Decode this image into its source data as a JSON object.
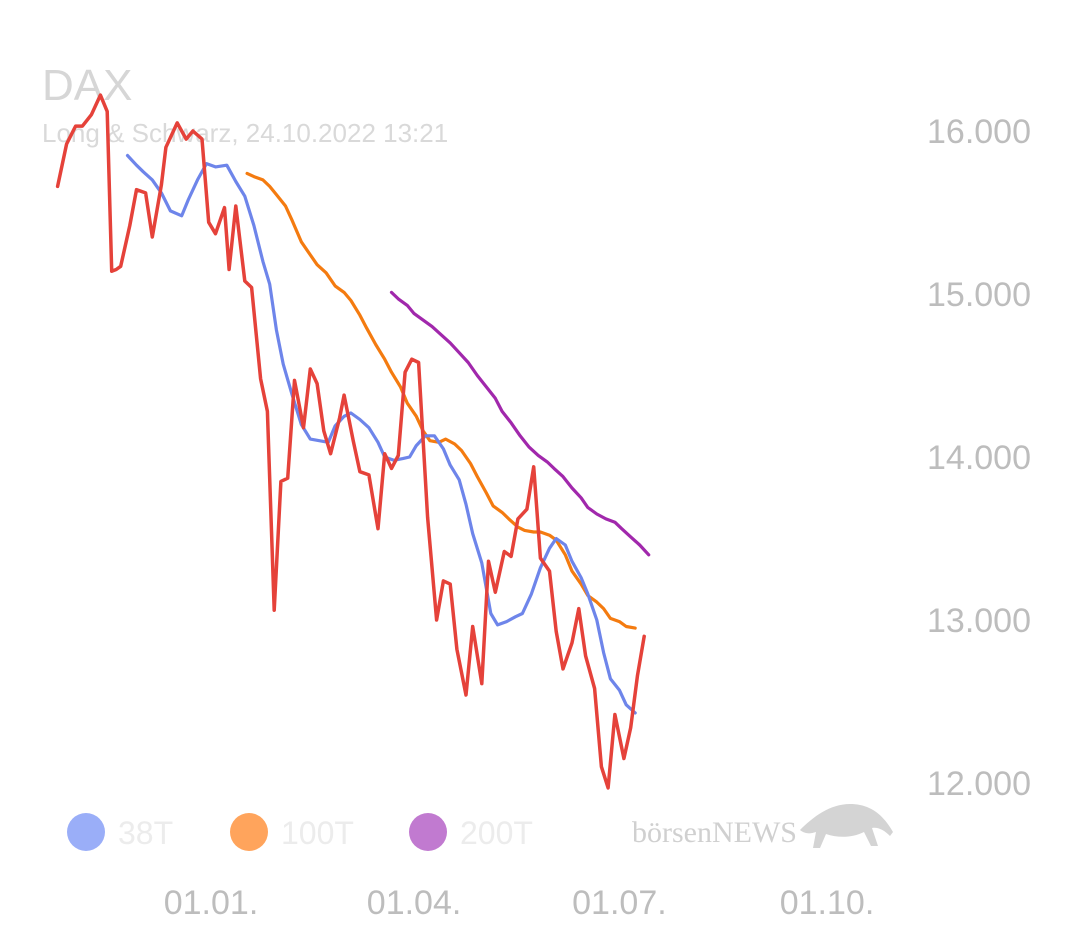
{
  "chart_data": {
    "type": "line",
    "title": "DAX",
    "subtitle": "Long & Schwarz, 24.10.2022 13:21",
    "brand": "börsenNEWS",
    "x_ticks": [
      {
        "label": "01.01.",
        "x": 0
      },
      {
        "label": "01.04.",
        "x": 90
      },
      {
        "label": "01.07.",
        "x": 181
      },
      {
        "label": "01.10.",
        "x": 273
      }
    ],
    "y_ticks": [
      {
        "label": "16.000",
        "value": 16000
      },
      {
        "label": "15.000",
        "value": 15000
      },
      {
        "label": "14.000",
        "value": 14000
      },
      {
        "label": "13.000",
        "value": 13000
      },
      {
        "label": "12.000",
        "value": 12000
      }
    ],
    "ylim": [
      12000,
      16000
    ],
    "x_unit": "days relative to 01.01.2022",
    "legend": [
      {
        "label": "38T",
        "color": "#9aaef8"
      },
      {
        "label": "100T",
        "color": "#ffa45c"
      },
      {
        "label": "200T",
        "color": "#c17ad0"
      }
    ],
    "series": [
      {
        "name": "DAX",
        "color": "#e5423a",
        "points": [
          [
            -68,
            15660
          ],
          [
            -64,
            15920
          ],
          [
            -60,
            16030
          ],
          [
            -57,
            16030
          ],
          [
            -53,
            16100
          ],
          [
            -49,
            16220
          ],
          [
            -46,
            16120
          ],
          [
            -44,
            15140
          ],
          [
            -42,
            15150
          ],
          [
            -40,
            15170
          ],
          [
            -36,
            15420
          ],
          [
            -33,
            15640
          ],
          [
            -29,
            15620
          ],
          [
            -26,
            15350
          ],
          [
            -22,
            15670
          ],
          [
            -20,
            15900
          ],
          [
            -15,
            16050
          ],
          [
            -11,
            15950
          ],
          [
            -8,
            16000
          ],
          [
            -4,
            15950
          ],
          [
            -1,
            15440
          ],
          [
            2,
            15370
          ],
          [
            6,
            15530
          ],
          [
            8,
            15150
          ],
          [
            11,
            15540
          ],
          [
            15,
            15080
          ],
          [
            18,
            15040
          ],
          [
            22,
            14480
          ],
          [
            25,
            14280
          ],
          [
            28,
            13060
          ],
          [
            31,
            13850
          ],
          [
            34,
            13870
          ],
          [
            37,
            14470
          ],
          [
            41,
            14180
          ],
          [
            44,
            14540
          ],
          [
            47,
            14450
          ],
          [
            50,
            14160
          ],
          [
            53,
            14020
          ],
          [
            57,
            14240
          ],
          [
            59,
            14380
          ],
          [
            63,
            14100
          ],
          [
            66,
            13910
          ],
          [
            70,
            13890
          ],
          [
            74,
            13560
          ],
          [
            77,
            14020
          ],
          [
            80,
            13930
          ],
          [
            83,
            14010
          ],
          [
            86,
            14520
          ],
          [
            89,
            14600
          ],
          [
            92,
            14580
          ],
          [
            96,
            13630
          ],
          [
            100,
            13000
          ],
          [
            103,
            13240
          ],
          [
            106,
            13220
          ],
          [
            109,
            12820
          ],
          [
            113,
            12540
          ],
          [
            116,
            12960
          ],
          [
            120,
            12610
          ],
          [
            123,
            13360
          ],
          [
            126,
            13170
          ],
          [
            130,
            13420
          ],
          [
            133,
            13390
          ],
          [
            136,
            13620
          ],
          [
            140,
            13680
          ],
          [
            143,
            13940
          ],
          [
            146,
            13380
          ],
          [
            150,
            13300
          ],
          [
            153,
            12930
          ],
          [
            156,
            12700
          ],
          [
            160,
            12860
          ],
          [
            163,
            13070
          ],
          [
            166,
            12780
          ],
          [
            170,
            12580
          ],
          [
            173,
            12100
          ],
          [
            176,
            11970
          ],
          [
            179,
            12420
          ],
          [
            183,
            12150
          ],
          [
            186,
            12340
          ],
          [
            189,
            12660
          ],
          [
            192,
            12900
          ]
        ]
      },
      {
        "name": "38T",
        "color": "#6e85ea",
        "points": [
          [
            -37,
            15850
          ],
          [
            -33,
            15790
          ],
          [
            -30,
            15750
          ],
          [
            -26,
            15700
          ],
          [
            -22,
            15620
          ],
          [
            -18,
            15510
          ],
          [
            -13,
            15480
          ],
          [
            -10,
            15580
          ],
          [
            -6,
            15700
          ],
          [
            -2,
            15800
          ],
          [
            2,
            15780
          ],
          [
            7,
            15790
          ],
          [
            11,
            15690
          ],
          [
            15,
            15600
          ],
          [
            19,
            15420
          ],
          [
            23,
            15200
          ],
          [
            26,
            15060
          ],
          [
            29,
            14780
          ],
          [
            32,
            14570
          ],
          [
            36,
            14380
          ],
          [
            40,
            14200
          ],
          [
            44,
            14110
          ],
          [
            48,
            14100
          ],
          [
            52,
            14090
          ],
          [
            55,
            14190
          ],
          [
            59,
            14250
          ],
          [
            62,
            14270
          ],
          [
            66,
            14230
          ],
          [
            70,
            14180
          ],
          [
            74,
            14090
          ],
          [
            77,
            14000
          ],
          [
            81,
            13980
          ],
          [
            85,
            13990
          ],
          [
            88,
            14000
          ],
          [
            91,
            14070
          ],
          [
            95,
            14130
          ],
          [
            99,
            14130
          ],
          [
            103,
            14050
          ],
          [
            106,
            13950
          ],
          [
            110,
            13860
          ],
          [
            113,
            13710
          ],
          [
            116,
            13530
          ],
          [
            120,
            13350
          ],
          [
            124,
            13040
          ],
          [
            127,
            12970
          ],
          [
            131,
            12990
          ],
          [
            135,
            13020
          ],
          [
            138,
            13040
          ],
          [
            142,
            13160
          ],
          [
            146,
            13320
          ],
          [
            150,
            13440
          ],
          [
            153,
            13500
          ],
          [
            157,
            13460
          ],
          [
            160,
            13360
          ],
          [
            164,
            13260
          ],
          [
            167,
            13160
          ],
          [
            171,
            13000
          ],
          [
            174,
            12800
          ],
          [
            177,
            12640
          ],
          [
            181,
            12570
          ],
          [
            184,
            12480
          ],
          [
            188,
            12430
          ]
        ]
      },
      {
        "name": "100T",
        "color": "#f47b10",
        "points": [
          [
            16,
            15740
          ],
          [
            19,
            15720
          ],
          [
            23,
            15700
          ],
          [
            26,
            15660
          ],
          [
            29,
            15610
          ],
          [
            33,
            15540
          ],
          [
            36,
            15450
          ],
          [
            40,
            15320
          ],
          [
            44,
            15240
          ],
          [
            47,
            15180
          ],
          [
            51,
            15130
          ],
          [
            55,
            15050
          ],
          [
            59,
            15010
          ],
          [
            62,
            14960
          ],
          [
            66,
            14870
          ],
          [
            69,
            14790
          ],
          [
            73,
            14690
          ],
          [
            77,
            14600
          ],
          [
            80,
            14520
          ],
          [
            84,
            14430
          ],
          [
            87,
            14330
          ],
          [
            91,
            14250
          ],
          [
            94,
            14160
          ],
          [
            97,
            14100
          ],
          [
            101,
            14090
          ],
          [
            104,
            14110
          ],
          [
            108,
            14080
          ],
          [
            111,
            14040
          ],
          [
            115,
            13960
          ],
          [
            118,
            13880
          ],
          [
            122,
            13780
          ],
          [
            125,
            13700
          ],
          [
            129,
            13660
          ],
          [
            132,
            13620
          ],
          [
            136,
            13570
          ],
          [
            139,
            13550
          ],
          [
            143,
            13540
          ],
          [
            146,
            13540
          ],
          [
            150,
            13520
          ],
          [
            153,
            13490
          ],
          [
            157,
            13400
          ],
          [
            160,
            13300
          ],
          [
            164,
            13220
          ],
          [
            167,
            13150
          ],
          [
            171,
            13110
          ],
          [
            174,
            13070
          ],
          [
            177,
            13010
          ],
          [
            181,
            12990
          ],
          [
            184,
            12960
          ],
          [
            188,
            12950
          ]
        ]
      },
      {
        "name": "200T",
        "color": "#a128ac",
        "points": [
          [
            80,
            15010
          ],
          [
            83,
            14970
          ],
          [
            87,
            14930
          ],
          [
            90,
            14880
          ],
          [
            94,
            14840
          ],
          [
            98,
            14800
          ],
          [
            102,
            14750
          ],
          [
            106,
            14700
          ],
          [
            110,
            14640
          ],
          [
            114,
            14580
          ],
          [
            118,
            14500
          ],
          [
            122,
            14430
          ],
          [
            126,
            14360
          ],
          [
            129,
            14280
          ],
          [
            133,
            14210
          ],
          [
            137,
            14130
          ],
          [
            141,
            14060
          ],
          [
            145,
            14010
          ],
          [
            149,
            13970
          ],
          [
            152,
            13930
          ],
          [
            156,
            13880
          ],
          [
            160,
            13810
          ],
          [
            164,
            13750
          ],
          [
            167,
            13690
          ],
          [
            171,
            13650
          ],
          [
            175,
            13620
          ],
          [
            179,
            13600
          ],
          [
            182,
            13560
          ],
          [
            186,
            13510
          ],
          [
            190,
            13460
          ],
          [
            194,
            13400
          ]
        ]
      }
    ]
  }
}
